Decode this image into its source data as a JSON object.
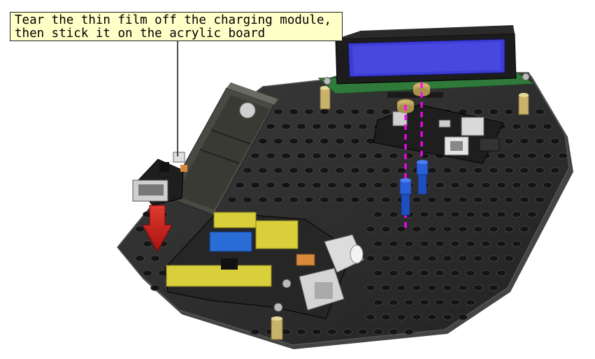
{
  "callout": {
    "line1": "Tear the thin film off the charging module,",
    "line2": "then stick it on the acrylic board"
  },
  "colors": {
    "board": "#2b2b2b",
    "board_edge": "#3d3d3d",
    "hole": "#151515",
    "callout_bg": "#ffffc8",
    "arrow": "#c8201e",
    "lcd_screen": "#3c3cd4",
    "pcb_green": "#2f7a3a",
    "header_yellow": "#d8cf3a",
    "guide_magenta": "#ff00ff",
    "standoff_blue": "#2a5fd6",
    "brass": "#c9b36a"
  },
  "icons": [
    "arrow-down-icon"
  ]
}
